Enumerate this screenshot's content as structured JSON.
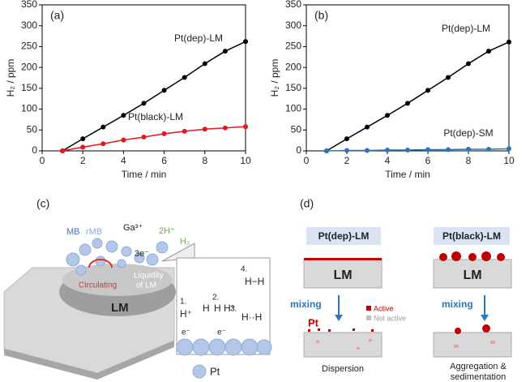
{
  "chart_data": [
    {
      "type": "line",
      "panel": "(a)",
      "xlabel": "Time / min",
      "ylabel": "H₂ / ppm",
      "x": [
        1,
        2,
        3,
        4,
        5,
        6,
        7,
        8,
        9,
        10
      ],
      "series": [
        {
          "name": "Pt(dep)-LM",
          "color": "#000000",
          "values": [
            0,
            29,
            57,
            85,
            114,
            145,
            176,
            209,
            239,
            262
          ]
        },
        {
          "name": "Pt(black)-LM",
          "color": "#e8141e",
          "values": [
            0,
            9,
            17,
            26,
            33,
            41,
            47,
            52,
            55,
            58
          ]
        }
      ],
      "xlim": [
        0,
        10
      ],
      "ylim": [
        0,
        350
      ],
      "xticks": [
        0,
        2,
        4,
        6,
        8,
        10
      ],
      "yticks": [
        0,
        50,
        100,
        150,
        200,
        250,
        300,
        350
      ]
    },
    {
      "type": "line",
      "panel": "(b)",
      "xlabel": "Time / min",
      "ylabel": "H₂ / ppm",
      "x": [
        1,
        2,
        3,
        4,
        5,
        6,
        7,
        8,
        9,
        10
      ],
      "series": [
        {
          "name": "Pt(dep)-LM",
          "color": "#000000",
          "values": [
            0,
            29,
            57,
            85,
            114,
            145,
            176,
            209,
            239,
            261
          ]
        },
        {
          "name": "Pt(dep)-SM",
          "color": "#2e75b6",
          "values": [
            0,
            1,
            1,
            2,
            2,
            3,
            3,
            4,
            4,
            5
          ]
        }
      ],
      "xlim": [
        0,
        10
      ],
      "ylim": [
        0,
        350
      ],
      "xticks": [
        0,
        2,
        4,
        6,
        8,
        10
      ],
      "yticks": [
        0,
        50,
        100,
        150,
        200,
        250,
        300,
        350
      ]
    }
  ],
  "diagrams": {
    "c": {
      "panel": "(c)",
      "mb": "MB",
      "rmb": "rMB",
      "ga": "Ga³⁺",
      "h_plus": "2H⁺",
      "h2": "H₂",
      "electrons": "3e⁻",
      "circulating": "Circulating",
      "liquidity": [
        "Liquidity",
        "of LM"
      ],
      "lm": "LM",
      "steps": [
        "1.",
        "2.",
        "3.",
        "4."
      ],
      "species": [
        "H⁺",
        "H",
        "H",
        "H⁺",
        "H··H",
        "H−H",
        "e⁻",
        "e⁻"
      ],
      "legend": "Pt"
    },
    "d": {
      "panel": "(d)",
      "left_title": "Pt(dep)-LM",
      "right_title": "Pt(black)-LM",
      "lm": [
        "LM",
        "LM"
      ],
      "mixing": [
        "mixing",
        "mixing"
      ],
      "active": "Active",
      "not_active": "Not active",
      "pt": "Pt",
      "left_result": "Dispersion",
      "right_result": [
        "Aggregation &",
        "sedimentation"
      ]
    }
  }
}
